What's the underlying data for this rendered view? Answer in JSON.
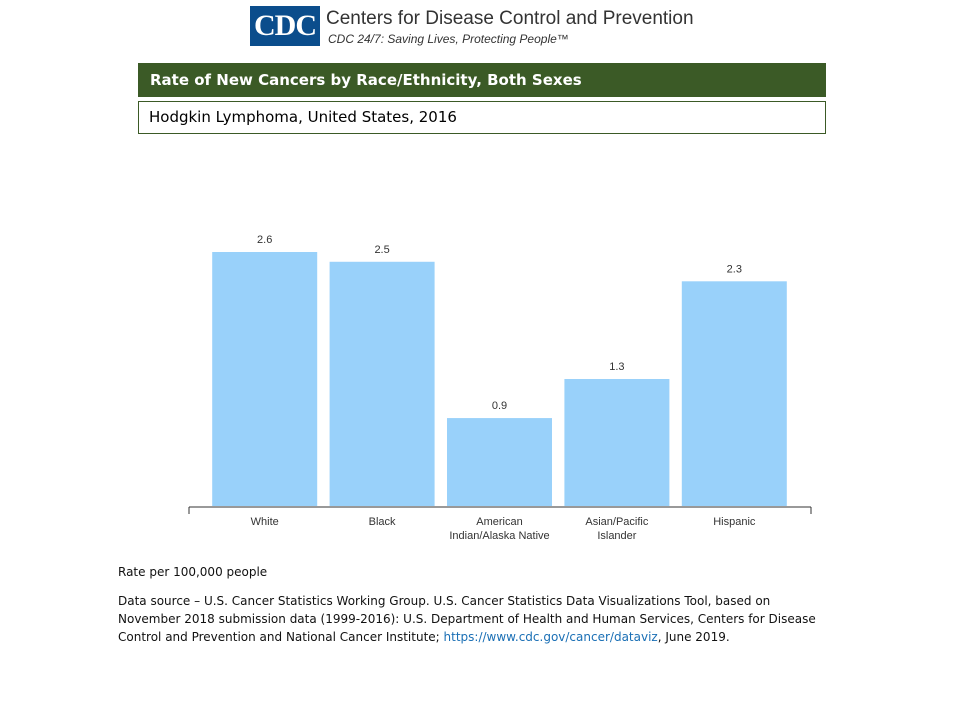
{
  "header": {
    "logo": "CDC",
    "agency": "Centers for Disease Control and Prevention",
    "tagline": "CDC 24/7: Saving Lives, Protecting People™"
  },
  "chart_data": {
    "type": "bar",
    "title": "Rate of New Cancers by Race/Ethnicity, Both Sexes",
    "subtitle": "Hodgkin Lymphoma, United States, 2016",
    "categories": [
      "White",
      "Black",
      "American\nIndian/Alaska Native",
      "Asian/Pacific\nIslander",
      "Hispanic"
    ],
    "values": [
      2.6,
      2.5,
      0.9,
      1.3,
      2.3
    ],
    "color": "#99d1fa"
  },
  "footer": {
    "unit_note": "Rate per 100,000 people",
    "source_before": "Data source – U.S. Cancer Statistics Working Group. U.S. Cancer Statistics Data Visualizations Tool, based on November 2018 submission data (1999-2016): U.S. Department of Health and Human Services, Centers for Disease Control and Prevention and National Cancer Institute; ",
    "source_link": "https://www.cdc.gov/cancer/dataviz",
    "source_after": ", June 2019."
  }
}
